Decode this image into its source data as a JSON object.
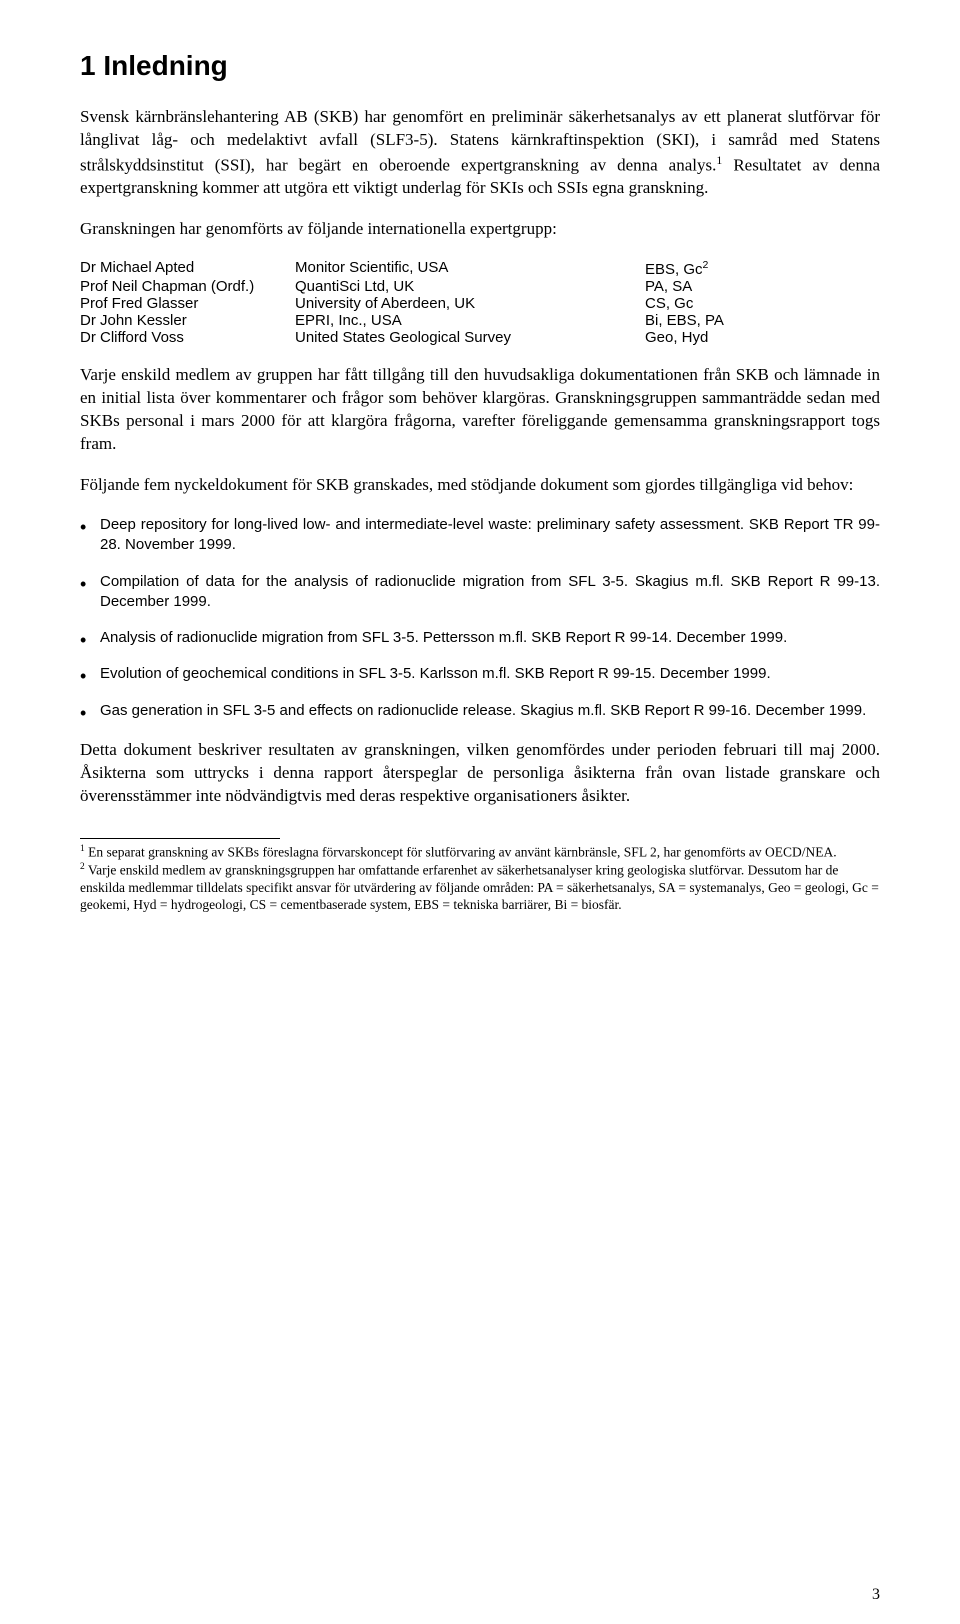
{
  "heading": "1   Inledning",
  "p1": "Svensk kärnbränslehantering AB (SKB) har genomfört en preliminär säkerhetsanalys av ett planerat slutförvar för långlivat låg- och medelaktivt avfall (SLF3-5). Statens kärnkraftinspektion (SKI), i samråd med Statens strålskyddsinstitut (SSI), har begärt en oberoende expertgranskning av denna analys.",
  "p1_tail": " Resultatet av denna expertgranskning kommer att utgöra ett viktigt underlag för SKIs och SSIs egna granskning.",
  "p2": "Granskningen har genomförts av följande internationella expertgrupp:",
  "experts": [
    {
      "name": "Dr Michael Apted",
      "org": "Monitor Scientific, USA",
      "codes_pre": "EBS, Gc",
      "sup": "2"
    },
    {
      "name": "Prof Neil Chapman (Ordf.)",
      "org": "QuantiSci Ltd, UK",
      "codes_pre": "PA, SA",
      "sup": ""
    },
    {
      "name": "Prof Fred Glasser",
      "org": "University of Aberdeen, UK",
      "codes_pre": "CS, Gc",
      "sup": ""
    },
    {
      "name": "Dr John Kessler",
      "org": "EPRI, Inc., USA",
      "codes_pre": "Bi, EBS, PA",
      "sup": ""
    },
    {
      "name": "Dr Clifford Voss",
      "org": "United States Geological Survey",
      "codes_pre": "Geo, Hyd",
      "sup": ""
    }
  ],
  "p3": "Varje enskild medlem av gruppen har fått tillgång till den huvudsakliga dokumentationen från SKB och lämnade in en initial lista över kommentarer och frågor som behöver klargöras. Granskningsgruppen sammanträdde sedan med SKBs personal i mars 2000 för att klargöra frågorna, varefter föreliggande gemensamma granskningsrapport togs fram.",
  "p4": "Följande fem nyckeldokument för SKB granskades, med stödjande dokument som gjordes tillgängliga vid behov:",
  "docs": [
    "Deep repository for long-lived low- and intermediate-level waste: preliminary safety assessment. SKB Report TR 99-28. November 1999.",
    "Compilation of data for the analysis of radionuclide migration from SFL 3-5. Skagius m.fl. SKB Report R 99-13. December 1999.",
    "Analysis of radionuclide migration from SFL 3-5. Pettersson m.fl. SKB Report R 99-14. December 1999.",
    "Evolution of geochemical conditions in SFL 3-5. Karlsson m.fl. SKB Report R 99-15. December 1999.",
    "Gas generation in SFL 3-5 and effects on radionuclide release. Skagius m.fl. SKB Report R 99-16. December 1999."
  ],
  "p5": "Detta dokument beskriver resultaten av granskningen, vilken genomfördes under perioden februari till maj 2000. Åsikterna som uttrycks i denna rapport återspeglar de personliga åsikterna från ovan listade granskare och överensstämmer inte nödvändigtvis med deras respektive organisationers åsikter.",
  "fn1_sup": "1",
  "fn1": " En separat granskning av SKBs föreslagna förvarskoncept för slutförvaring av använt kärnbränsle, SFL 2, har genomförts av OECD/NEA.",
  "fn2_sup": "2",
  "fn2": " Varje enskild medlem av granskningsgruppen har omfattande erfarenhet av säkerhetsanalyser kring geologiska slutförvar. Dessutom har de enskilda medlemmar tilldelats specifikt ansvar för utvärdering av följande områden: PA = säkerhetsanalys, SA = systemanalys, Geo = geologi, Gc = geokemi, Hyd = hydrogeologi, CS = cementbaserade system, EBS = tekniska barriärer, Bi = biosfär.",
  "page_num": "3"
}
